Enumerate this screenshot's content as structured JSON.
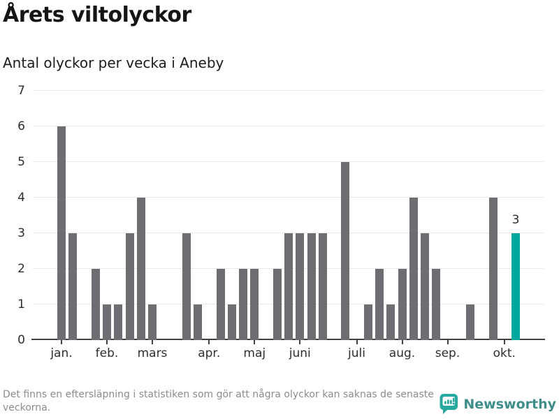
{
  "header": {
    "title": "Årets viltolyckor",
    "subtitle": "Antal olyckor per vecka i Aneby"
  },
  "chart_data": {
    "type": "bar",
    "title": "Årets viltolyckor",
    "subtitle": "Antal olyckor per vecka i Aneby",
    "xlabel": "",
    "ylabel": "",
    "ylim": [
      0,
      7
    ],
    "yticks": [
      0,
      1,
      2,
      3,
      4,
      5,
      6,
      7
    ],
    "grid": true,
    "gridline_color": "#e8e8e8",
    "bar_color": "#6d6d72",
    "x_unit": "vecka",
    "values": [
      6,
      3,
      0,
      2,
      1,
      1,
      3,
      4,
      1,
      0,
      0,
      3,
      1,
      0,
      2,
      1,
      2,
      2,
      0,
      2,
      3,
      3,
      3,
      3,
      0,
      5,
      0,
      1,
      2,
      1,
      2,
      4,
      3,
      2,
      0,
      0,
      1,
      0,
      4,
      0,
      3
    ],
    "month_ticks": [
      {
        "week": 1,
        "label": "jan."
      },
      {
        "week": 5,
        "label": "feb."
      },
      {
        "week": 9,
        "label": "mars"
      },
      {
        "week": 14,
        "label": "apr."
      },
      {
        "week": 18,
        "label": "maj"
      },
      {
        "week": 22,
        "label": "juni"
      },
      {
        "week": 27,
        "label": "juli"
      },
      {
        "week": 31,
        "label": "aug."
      },
      {
        "week": 35,
        "label": "sep."
      },
      {
        "week": 40,
        "label": "okt."
      }
    ],
    "highlight": {
      "week": 41,
      "value": 3,
      "label": "3",
      "color": "#00a79c"
    }
  },
  "footer": {
    "note": "Det finns en eftersläpning i statistiken som gör att några olyckor kan saknas de senaste veckorna.",
    "brand": "Newsworthy"
  },
  "colors": {
    "accent_teal": "#00a79c",
    "bar_gray": "#6d6d72",
    "axis": "#414141",
    "logo_teal": "#27a8a0",
    "wordmark_teal": "#3e8d8b"
  }
}
